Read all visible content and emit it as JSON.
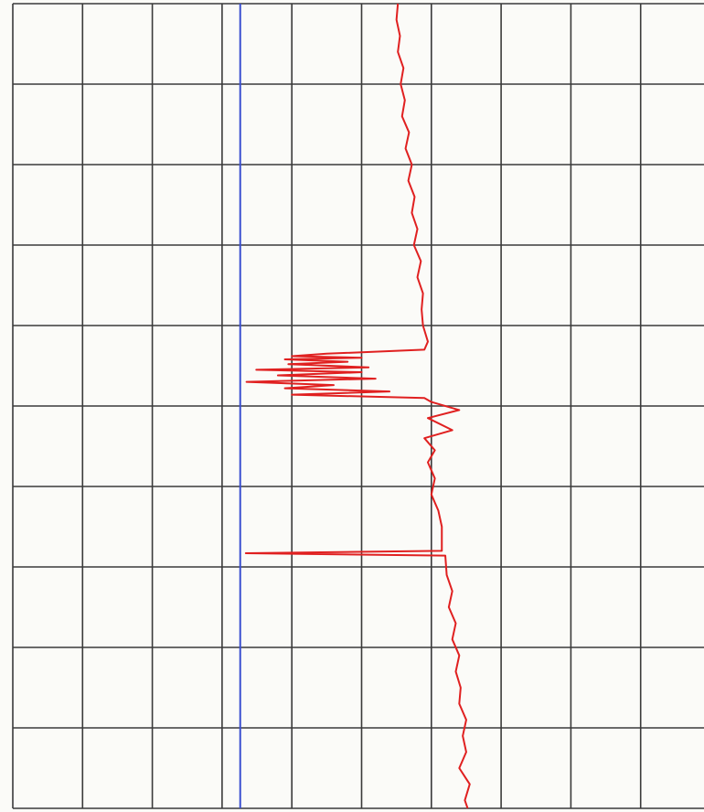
{
  "chart_data": {
    "type": "line",
    "orientation": "vertical",
    "grid": true,
    "xlim": [
      0,
      10
    ],
    "xticks": [
      0,
      1,
      2,
      3,
      4,
      5,
      6,
      7,
      8,
      9,
      10
    ],
    "ylim": [
      0,
      10
    ],
    "yticks": [
      0,
      1,
      2,
      3,
      4,
      5,
      6,
      7,
      8,
      9,
      10
    ],
    "series": [
      {
        "color": "#3a4fd0",
        "x": [
          0,
          10
        ],
        "values": [
          3.26,
          3.26
        ]
      },
      {
        "color": "#e02020",
        "x": [
          0,
          0.2,
          0.4,
          0.6,
          0.8,
          1.0,
          1.2,
          1.4,
          1.6,
          1.8,
          2.0,
          2.2,
          2.4,
          2.6,
          2.8,
          3.0,
          3.2,
          3.4,
          3.6,
          3.8,
          4.0,
          4.2,
          4.3,
          4.35,
          4.38,
          4.4,
          4.42,
          4.45,
          4.48,
          4.52,
          4.55,
          4.58,
          4.62,
          4.66,
          4.7,
          4.74,
          4.78,
          4.82,
          4.86,
          4.9,
          4.95,
          5.05,
          5.15,
          5.3,
          5.4,
          5.55,
          5.7,
          5.9,
          6.1,
          6.3,
          6.5,
          6.8,
          6.83,
          6.86,
          7.1,
          7.3,
          7.5,
          7.7,
          7.9,
          8.1,
          8.3,
          8.5,
          8.7,
          8.9,
          9.1,
          9.3,
          9.5,
          9.7,
          9.9,
          10.0
        ],
        "values": [
          5.52,
          5.5,
          5.55,
          5.52,
          5.6,
          5.56,
          5.62,
          5.58,
          5.68,
          5.63,
          5.72,
          5.67,
          5.76,
          5.72,
          5.8,
          5.75,
          5.85,
          5.8,
          5.88,
          5.86,
          5.88,
          5.95,
          5.9,
          4.5,
          4.0,
          5.0,
          3.9,
          4.8,
          3.95,
          5.1,
          3.49,
          5.0,
          3.8,
          5.2,
          3.35,
          4.6,
          3.9,
          5.4,
          4.0,
          5.9,
          6.0,
          6.4,
          5.95,
          6.3,
          5.9,
          6.05,
          5.95,
          6.05,
          6.0,
          6.1,
          6.15,
          6.15,
          3.34,
          6.2,
          6.22,
          6.3,
          6.25,
          6.35,
          6.3,
          6.4,
          6.35,
          6.42,
          6.4,
          6.5,
          6.45,
          6.5,
          6.4,
          6.55,
          6.48,
          6.52
        ]
      }
    ]
  }
}
